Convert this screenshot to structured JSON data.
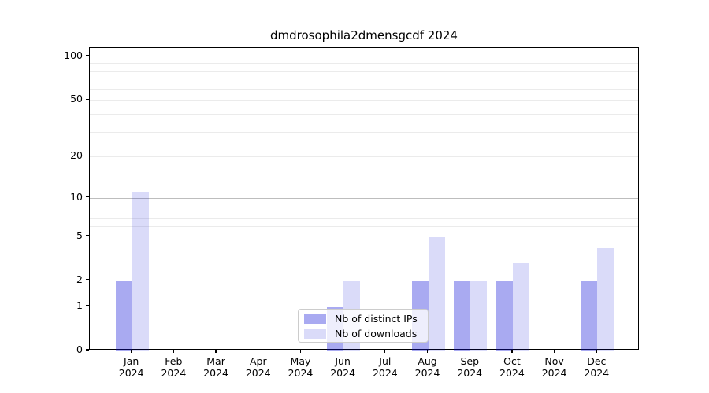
{
  "chart_data": {
    "type": "bar",
    "title": "dmdrosophila2dmensgcdf 2024",
    "categories": [
      "Jan",
      "Feb",
      "Mar",
      "Apr",
      "May",
      "Jun",
      "Jul",
      "Aug",
      "Sep",
      "Oct",
      "Nov",
      "Dec"
    ],
    "category_year": "2024",
    "series": [
      {
        "name": "Nb of distinct IPs",
        "color": "rgba(8,12,216,0.35)",
        "values": [
          2,
          0,
          0,
          0,
          0,
          1,
          0,
          2,
          2,
          2,
          0,
          2
        ]
      },
      {
        "name": "Nb of downloads",
        "color": "rgba(8,12,216,0.15)",
        "values": [
          11,
          0,
          0,
          0,
          0,
          2,
          0,
          5,
          2,
          3,
          0,
          4
        ]
      }
    ],
    "y_axis": {
      "scale": "log1p",
      "min": 0,
      "max": 114.3,
      "tick_values": [
        100,
        50,
        20,
        10,
        5,
        2,
        1,
        0
      ],
      "major_gridlines": [
        1,
        10,
        100
      ],
      "minor_gridlines": [
        2,
        3,
        4,
        5,
        6,
        7,
        8,
        9,
        20,
        30,
        40,
        50,
        60,
        70,
        80,
        90
      ]
    },
    "x_axis": {
      "tick_labels_line1": [
        "Jan",
        "Feb",
        "Mar",
        "Apr",
        "May",
        "Jun",
        "Jul",
        "Aug",
        "Sep",
        "Oct",
        "Nov",
        "Dec"
      ],
      "tick_labels_line2": [
        "2024",
        "2024",
        "2024",
        "2024",
        "2024",
        "2024",
        "2024",
        "2024",
        "2024",
        "2024",
        "2024",
        "2024"
      ]
    },
    "legend": {
      "position": "bottom-center",
      "labels": [
        "Nb of distinct IPs",
        "Nb of downloads"
      ]
    },
    "grid": true
  }
}
